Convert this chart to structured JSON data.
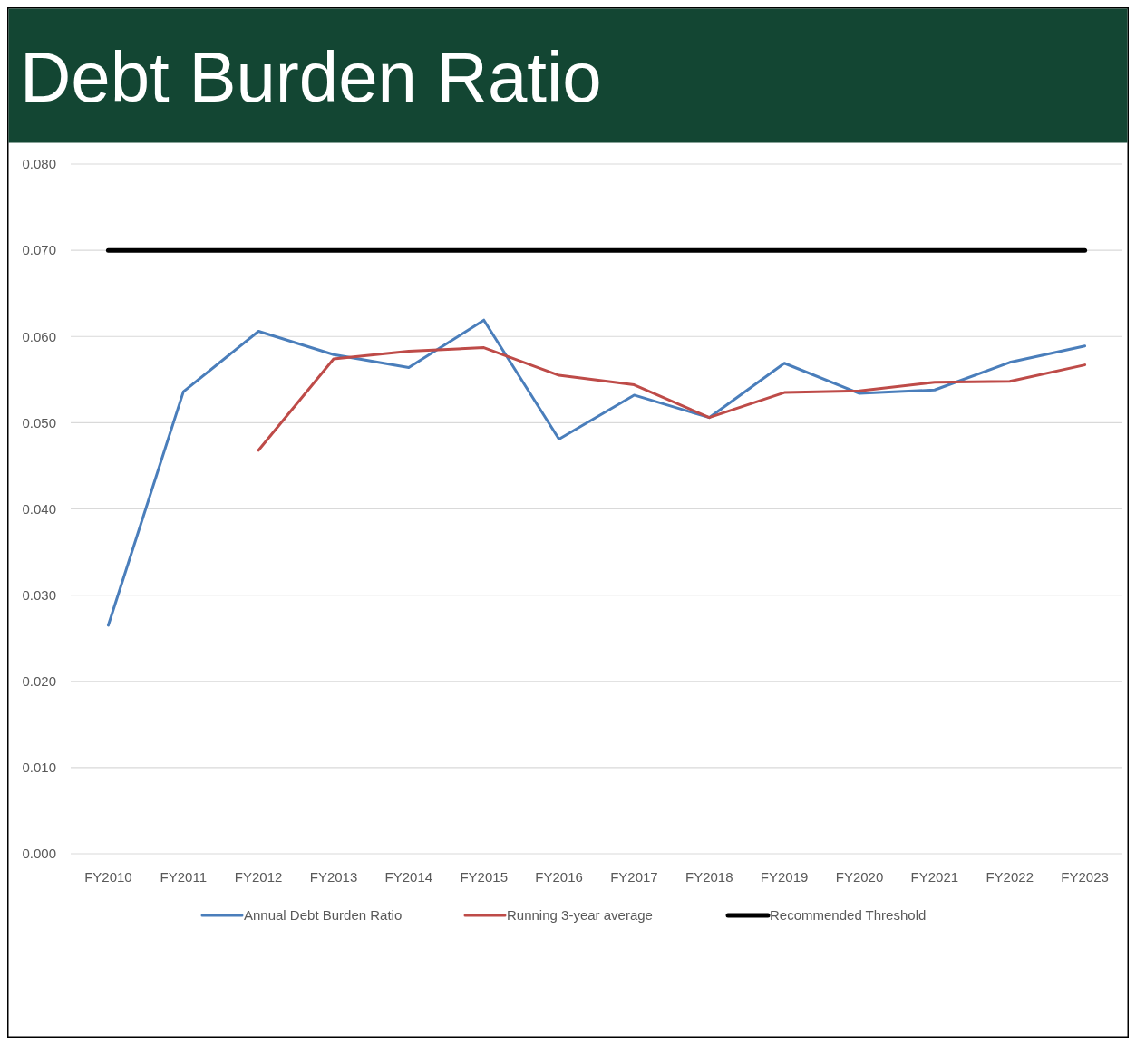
{
  "chart_data": {
    "type": "line",
    "title": "Debt Burden Ratio",
    "categories": [
      "FY2010",
      "FY2011",
      "FY2012",
      "FY2013",
      "FY2014",
      "FY2015",
      "FY2016",
      "FY2017",
      "FY2018",
      "FY2019",
      "FY2020",
      "FY2021",
      "FY2022",
      "FY2023"
    ],
    "series": [
      {
        "name": "Annual Debt Burden Ratio",
        "color": "#4a7ebb",
        "values": [
          0.0265,
          0.0536,
          0.0606,
          0.0579,
          0.0564,
          0.0619,
          0.0481,
          0.0532,
          0.0506,
          0.0569,
          0.0534,
          0.0538,
          0.057,
          0.0589
        ]
      },
      {
        "name": "Running 3-year average",
        "color": "#be4b48",
        "values": [
          null,
          null,
          0.0468,
          0.0574,
          0.0583,
          0.0587,
          0.0555,
          0.0544,
          0.0506,
          0.0535,
          0.0537,
          0.0547,
          0.0548,
          0.0567
        ]
      },
      {
        "name": "Recommended Threshold",
        "color": "#000000",
        "values": [
          0.07,
          0.07,
          0.07,
          0.07,
          0.07,
          0.07,
          0.07,
          0.07,
          0.07,
          0.07,
          0.07,
          0.07,
          0.07,
          0.07
        ]
      }
    ],
    "ylim": [
      0,
      0.08
    ],
    "yticks": [
      {
        "value": 0,
        "label": "0.000"
      },
      {
        "value": 0.01,
        "label": "0.010"
      },
      {
        "value": 0.02,
        "label": "0.020"
      },
      {
        "value": 0.03,
        "label": "0.030"
      },
      {
        "value": 0.04,
        "label": "0.040"
      },
      {
        "value": 0.05,
        "label": "0.050"
      },
      {
        "value": 0.06,
        "label": "0.060"
      },
      {
        "value": 0.07,
        "label": "0.070"
      },
      {
        "value": 0.08,
        "label": "0.080"
      }
    ],
    "grid": "y",
    "legend": "bottom",
    "marker": "none",
    "line_style": "solid"
  }
}
